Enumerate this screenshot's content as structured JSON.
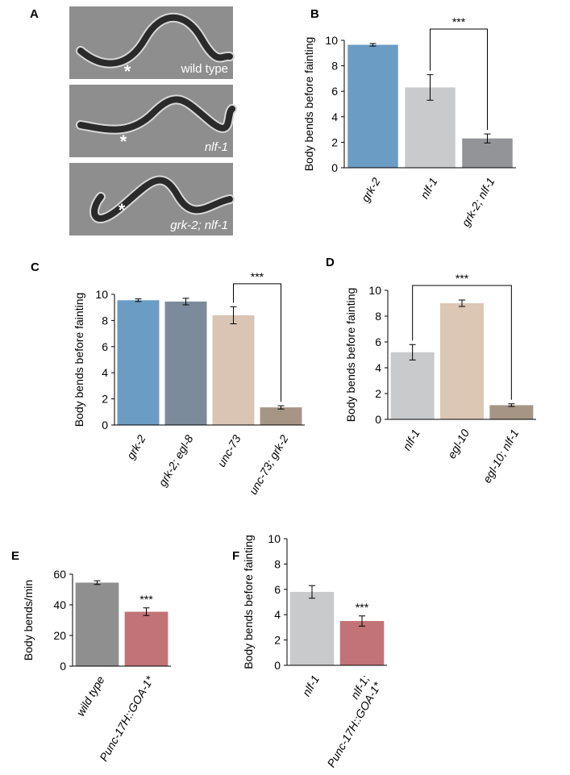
{
  "image_panel": {
    "panel": "A",
    "images": [
      {
        "caption": "wild type",
        "marker": "*"
      },
      {
        "caption": "nlf-1",
        "marker": "*"
      },
      {
        "caption": "grk-2; nlf-1",
        "marker": "*"
      }
    ]
  },
  "chart_data": [
    {
      "type": "bar",
      "panel": "B",
      "y_label": "Body bends before fainting",
      "categories": [
        "grk-2",
        "nlf-1",
        "grk-2; nlf-1"
      ],
      "values": [
        9.65,
        6.3,
        2.3
      ],
      "errors": [
        0.1,
        1.0,
        0.35
      ],
      "colors": [
        "#6b9cc4",
        "#c9cacc",
        "#939498"
      ],
      "ylim": [
        0,
        10
      ],
      "yticks": [
        0,
        2,
        4,
        6,
        8,
        10
      ],
      "bracket": {
        "label": "***",
        "bars": [
          1,
          2
        ]
      }
    },
    {
      "type": "bar",
      "panel": "C",
      "y_label": "Body bends before fainting",
      "categories": [
        "grk-2",
        "grk-2; egl-8",
        "unc-73",
        "unc-73; grk-2"
      ],
      "values": [
        9.55,
        9.45,
        8.4,
        1.35
      ],
      "errors": [
        0.1,
        0.25,
        0.65,
        0.12
      ],
      "colors": [
        "#6b9cc4",
        "#7c8b9b",
        "#dac5b4",
        "#a69585"
      ],
      "ylim": [
        0,
        10
      ],
      "yticks": [
        0,
        2,
        4,
        6,
        8,
        10
      ],
      "bracket": {
        "label": "***",
        "bars": [
          2,
          3
        ]
      }
    },
    {
      "type": "bar",
      "panel": "D",
      "y_label": "Body bends before fainting",
      "categories": [
        "nlf-1",
        "egl-10",
        "egl-10; nlf-1"
      ],
      "values": [
        5.2,
        9.0,
        1.1
      ],
      "errors": [
        0.6,
        0.25,
        0.1
      ],
      "colors": [
        "#c9cacc",
        "#dcc6b4",
        "#a69585"
      ],
      "ylim": [
        0,
        10
      ],
      "yticks": [
        0,
        2,
        4,
        6,
        8,
        10
      ],
      "bracket": {
        "label": "***",
        "bars": [
          0,
          2
        ]
      }
    },
    {
      "type": "bar",
      "panel": "E",
      "y_label": "Body bends/min",
      "categories": [
        "wild type",
        "Punc-17H::GOA-1*"
      ],
      "values": [
        54.5,
        35.5
      ],
      "errors": [
        1.2,
        2.5
      ],
      "colors": [
        "#8f8f8f",
        "#c17377"
      ],
      "ylim": [
        0,
        60
      ],
      "yticks": [
        0,
        20,
        40,
        60
      ],
      "bar_annotations": [
        null,
        "***"
      ]
    },
    {
      "type": "bar",
      "panel": "F",
      "y_label": "Body bends before fainting",
      "categories": [
        "nlf-1",
        [
          "nlf-1;",
          "Punc-17H::GOA-1*"
        ]
      ],
      "values": [
        5.8,
        3.5
      ],
      "errors": [
        0.5,
        0.4
      ],
      "colors": [
        "#c9cacc",
        "#c17377"
      ],
      "ylim": [
        0,
        10
      ],
      "yticks": [
        0,
        2,
        4,
        6,
        8,
        10
      ],
      "bar_annotations": [
        null,
        "***"
      ]
    }
  ]
}
